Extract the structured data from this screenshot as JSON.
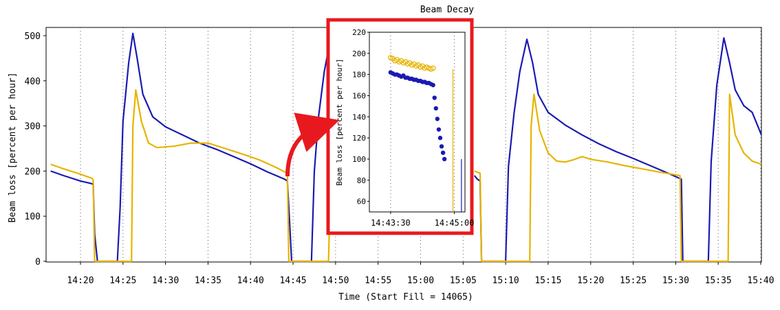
{
  "chart_data": [
    {
      "type": "line",
      "title": "Beam Decay",
      "xlabel": "Time (Start Fill = 14065)",
      "ylabel": "Beam loss [percent per hour]",
      "ylim": [
        0,
        520
      ],
      "yticks": [
        0,
        100,
        200,
        300,
        400,
        500
      ],
      "xticks": [
        "14:20",
        "14:25",
        "14:30",
        "14:35",
        "14:40",
        "14:45",
        "14:50",
        "14:55",
        "15:00",
        "15:05",
        "15:10",
        "15:15",
        "15:20",
        "15:25",
        "15:30",
        "15:35",
        "15:40"
      ],
      "grid": "vertical dotted",
      "series": [
        {
          "color": "#1a1ab4",
          "points": [
            [
              "14:16:30",
              200
            ],
            [
              "14:18:00",
              190
            ],
            [
              "14:20:00",
              178
            ],
            [
              "14:21:20",
              172
            ],
            [
              "14:21:30",
              170
            ],
            [
              "14:21:40",
              60
            ],
            [
              "14:22:00",
              0
            ],
            [
              "14:24:20",
              0
            ],
            [
              "14:24:40",
              120
            ],
            [
              "14:25:00",
              310
            ],
            [
              "14:25:40",
              440
            ],
            [
              "14:26:10",
              505
            ],
            [
              "14:26:40",
              450
            ],
            [
              "14:27:20",
              370
            ],
            [
              "14:28:30",
              320
            ],
            [
              "14:30:00",
              298
            ],
            [
              "14:32:00",
              280
            ],
            [
              "14:34:00",
              262
            ],
            [
              "14:36:00",
              248
            ],
            [
              "14:38:00",
              232
            ],
            [
              "14:40:00",
              216
            ],
            [
              "14:42:00",
              198
            ],
            [
              "14:44:00",
              182
            ],
            [
              "14:44:20",
              178
            ],
            [
              "14:44:30",
              120
            ],
            [
              "14:44:50",
              0
            ],
            [
              "14:47:10",
              0
            ],
            [
              "14:47:30",
              200
            ],
            [
              "14:48:00",
              320
            ],
            [
              "14:48:40",
              420
            ],
            [
              "14:49:10",
              470
            ]
          ]
        },
        {
          "color": "#e6b400",
          "points": [
            [
              "14:16:30",
              215
            ],
            [
              "14:18:00",
              205
            ],
            [
              "14:20:00",
              193
            ],
            [
              "14:21:20",
              184
            ],
            [
              "14:21:30",
              180
            ],
            [
              "14:21:40",
              0
            ],
            [
              "14:26:00",
              0
            ],
            [
              "14:26:10",
              300
            ],
            [
              "14:26:30",
              380
            ],
            [
              "14:27:10",
              310
            ],
            [
              "14:28:00",
              262
            ],
            [
              "14:29:00",
              252
            ],
            [
              "14:31:00",
              255
            ],
            [
              "14:33:00",
              262
            ],
            [
              "14:35:00",
              262
            ],
            [
              "14:37:00",
              250
            ],
            [
              "14:39:00",
              238
            ],
            [
              "14:41:00",
              225
            ],
            [
              "14:43:00",
              208
            ],
            [
              "14:44:20",
              195
            ],
            [
              "14:44:30",
              0
            ],
            [
              "14:49:10",
              0
            ],
            [
              "14:49:20",
              120
            ]
          ]
        }
      ],
      "series_right": [
        {
          "color": "#1a1ab4",
          "points": [
            [
              "15:06:20",
              190
            ],
            [
              "15:06:40",
              182
            ],
            [
              "15:07:00",
              178
            ],
            [
              "15:07:10",
              0
            ],
            [
              "15:10:00",
              0
            ],
            [
              "15:10:20",
              210
            ],
            [
              "15:11:00",
              330
            ],
            [
              "15:11:40",
              420
            ],
            [
              "15:12:30",
              492
            ],
            [
              "15:13:10",
              440
            ],
            [
              "15:13:50",
              370
            ],
            [
              "15:15:00",
              330
            ],
            [
              "15:17:00",
              302
            ],
            [
              "15:19:00",
              280
            ],
            [
              "15:21:00",
              260
            ],
            [
              "15:23:00",
              243
            ],
            [
              "15:25:00",
              228
            ],
            [
              "15:27:00",
              212
            ],
            [
              "15:29:00",
              196
            ],
            [
              "15:30:40",
              182
            ],
            [
              "15:30:50",
              0
            ],
            [
              "15:33:50",
              0
            ],
            [
              "15:34:10",
              220
            ],
            [
              "15:34:50",
              390
            ],
            [
              "15:35:40",
              495
            ],
            [
              "15:36:20",
              440
            ],
            [
              "15:37:00",
              380
            ],
            [
              "15:38:00",
              345
            ],
            [
              "15:39:00",
              330
            ],
            [
              "15:40:40",
              280
            ]
          ]
        },
        {
          "color": "#e6b400",
          "points": [
            [
              "15:06:20",
              200
            ],
            [
              "15:07:00",
              195
            ],
            [
              "15:07:10",
              0
            ],
            [
              "15:12:50",
              0
            ],
            [
              "15:13:00",
              300
            ],
            [
              "15:13:20",
              370
            ],
            [
              "15:14:00",
              290
            ],
            [
              "15:15:00",
              240
            ],
            [
              "15:16:00",
              222
            ],
            [
              "15:17:00",
              220
            ],
            [
              "15:18:00",
              225
            ],
            [
              "15:19:00",
              232
            ],
            [
              "15:20:00",
              226
            ],
            [
              "15:22:00",
              220
            ],
            [
              "15:24:00",
              212
            ],
            [
              "15:26:00",
              205
            ],
            [
              "15:28:00",
              198
            ],
            [
              "15:30:30",
              190
            ],
            [
              "15:30:40",
              0
            ],
            [
              "15:36:10",
              0
            ],
            [
              "15:36:20",
              370
            ],
            [
              "15:37:00",
              280
            ],
            [
              "15:38:00",
              240
            ],
            [
              "15:39:00",
              222
            ],
            [
              "15:40:40",
              215
            ]
          ]
        }
      ]
    },
    {
      "type": "scatter",
      "title": "",
      "xlabel": "",
      "ylabel": "Beam loss [percent per hour]",
      "ylim": [
        50,
        220
      ],
      "yticks": [
        60,
        80,
        100,
        120,
        140,
        160,
        180,
        200,
        220
      ],
      "xtick_labels": [
        "14:43:30",
        "14:45:00"
      ],
      "xlim_seconds": [
        -30,
        105
      ],
      "series": [
        {
          "color": "#e6b400",
          "marker": "open-circle",
          "points": [
            [
              0,
              196
            ],
            [
              3,
              195
            ],
            [
              6,
              193
            ],
            [
              9,
              194
            ],
            [
              12,
              192
            ],
            [
              15,
              193
            ],
            [
              18,
              191
            ],
            [
              21,
              192
            ],
            [
              24,
              190
            ],
            [
              27,
              191
            ],
            [
              30,
              189
            ],
            [
              33,
              190
            ],
            [
              36,
              188
            ],
            [
              39,
              189
            ],
            [
              42,
              187
            ],
            [
              45,
              188
            ],
            [
              48,
              186
            ],
            [
              51,
              187
            ],
            [
              54,
              186
            ],
            [
              57,
              185
            ],
            [
              60,
              186
            ]
          ]
        },
        {
          "color": "#1a1ab4",
          "marker": "filled-circle",
          "points": [
            [
              0,
              182
            ],
            [
              3,
              181
            ],
            [
              6,
              180
            ],
            [
              9,
              180
            ],
            [
              12,
              179
            ],
            [
              15,
              178
            ],
            [
              18,
              179
            ],
            [
              21,
              177
            ],
            [
              24,
              177
            ],
            [
              27,
              176
            ],
            [
              30,
              176
            ],
            [
              33,
              175
            ],
            [
              36,
              175
            ],
            [
              39,
              174
            ],
            [
              42,
              174
            ],
            [
              45,
              173
            ],
            [
              48,
              173
            ],
            [
              51,
              172
            ],
            [
              54,
              172
            ],
            [
              57,
              171
            ],
            [
              60,
              170
            ],
            [
              62,
              158
            ],
            [
              64,
              148
            ],
            [
              66,
              138
            ],
            [
              68,
              128
            ],
            [
              70,
              120
            ],
            [
              72,
              112
            ],
            [
              74,
              106
            ],
            [
              76,
              100
            ]
          ]
        }
      ]
    }
  ]
}
